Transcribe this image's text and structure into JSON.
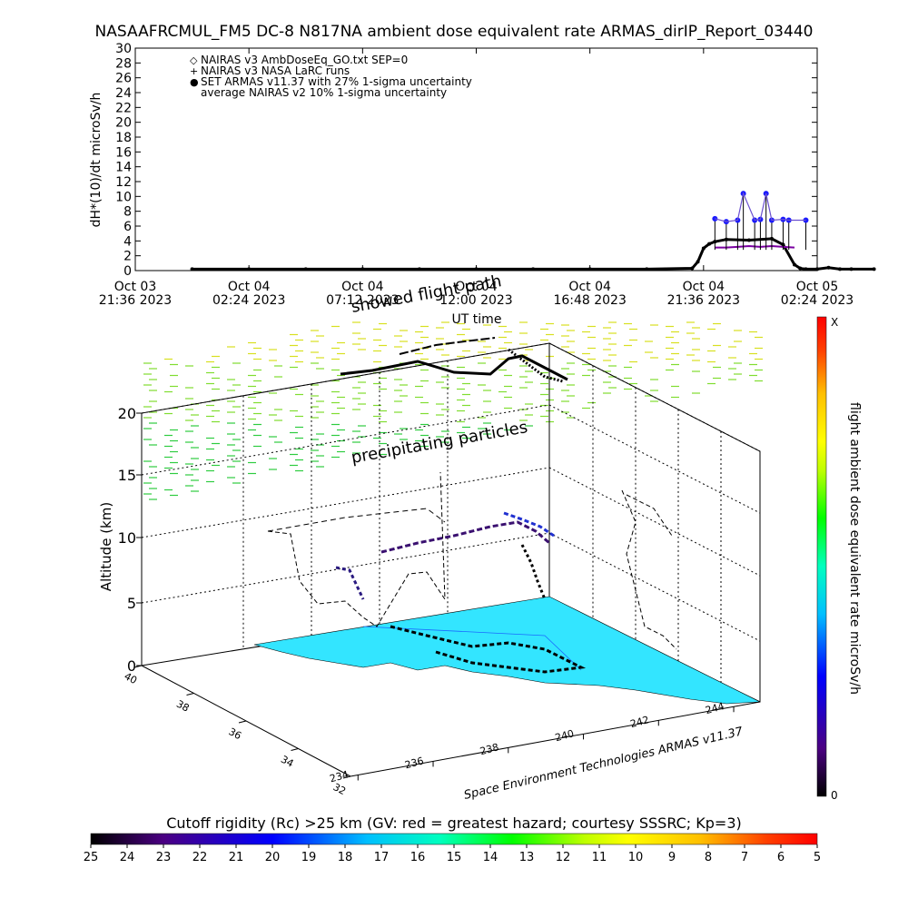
{
  "title": "NASAAFRCMUL_FM5 DC-8   N817NA ambient dose equivalent rate ARMAS_dirIP_Report_03440",
  "chart_data": [
    {
      "type": "line",
      "title": "NASAAFRCMUL_FM5 DC-8   N817NA ambient dose equivalent rate ARMAS_dirIP_Report_03440",
      "ylabel": "dH*(10)/dt microSv/h",
      "xlabel": "UT time",
      "ylim": [
        0,
        30
      ],
      "yticks": [
        "0",
        "2",
        "4",
        "6",
        "8",
        "10",
        "12",
        "14",
        "16",
        "18",
        "20",
        "22",
        "24",
        "26",
        "28",
        "30"
      ],
      "xticks": [
        {
          "t": 0,
          "line1": "Oct 03",
          "line2": "21:36 2023"
        },
        {
          "t": 1,
          "line1": "Oct 04",
          "line2": "02:24 2023"
        },
        {
          "t": 2,
          "line1": "Oct 04",
          "line2": "07:12 2023"
        },
        {
          "t": 3,
          "line1": "Oct 04",
          "line2": "12:00 2023"
        },
        {
          "t": 4,
          "line1": "Oct 04",
          "line2": "16:48 2023"
        },
        {
          "t": 5,
          "line1": "Oct 04",
          "line2": "21:36 2023"
        },
        {
          "t": 6,
          "line1": "Oct 05",
          "line2": "02:24 2023"
        }
      ],
      "legend": [
        {
          "symbol": "◇",
          "label": "NAIRAS v3 AmbDoseEq_GO.txt SEP=0"
        },
        {
          "symbol": "+",
          "label": "NAIRAS v3 NASA LaRC runs"
        },
        {
          "symbol": "●",
          "label": "SET ARMAS v11.37 with 27% 1-sigma uncertainty"
        },
        {
          "symbol": "",
          "label": "average NAIRAS v2 10% 1-sigma uncertainty"
        }
      ],
      "legend_position": "top-left",
      "series": [
        {
          "color": "#000000",
          "x": [
            0.5,
            1.0,
            1.5,
            2.0,
            2.5,
            3.0,
            3.5,
            4.0,
            4.5,
            4.9,
            4.95,
            5.0,
            5.05,
            5.1,
            5.2,
            5.4,
            5.6,
            5.7,
            5.8,
            5.85,
            5.9,
            6.0,
            6.1,
            6.2,
            6.3,
            6.5
          ],
          "y": [
            0.2,
            0.2,
            0.2,
            0.2,
            0.2,
            0.2,
            0.2,
            0.2,
            0.2,
            0.3,
            1.2,
            3.0,
            3.6,
            3.9,
            4.2,
            4.1,
            4.3,
            3.5,
            0.8,
            0.3,
            0.2,
            0.2,
            0.4,
            0.2,
            0.2,
            0.2
          ]
        },
        {
          "color": "#1a1aff",
          "x": [
            5.1,
            5.2,
            5.3,
            5.35,
            5.45,
            5.5,
            5.55,
            5.6,
            5.7,
            5.75,
            5.9
          ],
          "y": [
            7.0,
            6.6,
            6.8,
            10.4,
            6.8,
            6.9,
            10.4,
            6.8,
            6.9,
            6.8,
            6.8
          ]
        },
        {
          "color": "#7a00a0",
          "x": [
            5.1,
            5.2,
            5.3,
            5.4,
            5.5,
            5.6,
            5.7,
            5.8
          ],
          "y": [
            3.1,
            3.1,
            3.2,
            3.3,
            3.2,
            3.3,
            3.2,
            3.1
          ]
        }
      ]
    },
    {
      "type": "scatter",
      "title": "",
      "zlabel": "Altitude (km)",
      "zticks": [
        "0",
        "5",
        "10",
        "15",
        "20"
      ],
      "lat_ticks": [
        "32",
        "34",
        "36",
        "38",
        "40"
      ],
      "lon_ticks": [
        "234",
        "236",
        "238",
        "240",
        "242",
        "244"
      ],
      "annotations": [
        "showed flight path",
        "precipitating particles"
      ],
      "credit": "Space Environment Technologies ARMAS v11.37",
      "surface_color": "#33e5ff"
    },
    {
      "type": "heatmap",
      "title": "Cutoff rigidity (Rc) >25 km (GV: red = greatest hazard; courtesy SSSRC; Kp=3)",
      "ticks": [
        "25",
        "24",
        "23",
        "22",
        "21",
        "20",
        "19",
        "18",
        "17",
        "16",
        "15",
        "14",
        "13",
        "12",
        "11",
        "10",
        "9",
        "8",
        "7",
        "6",
        "5"
      ],
      "colors": [
        "#000000",
        "#4b0082",
        "#0000ff",
        "#00bfff",
        "#00ffbf",
        "#00ff00",
        "#bfff00",
        "#ffff00",
        "#ffbf00",
        "#ff4000",
        "#ff0000"
      ]
    },
    {
      "type": "heatmap",
      "title": "flight ambient dose equivalent rate microSv/h",
      "top_label": "X",
      "bottom_label": "0",
      "colors": [
        "#000000",
        "#4b0082",
        "#0000ff",
        "#00bfff",
        "#00ffbf",
        "#00ff00",
        "#bfff00",
        "#ffff00",
        "#ffbf00",
        "#ff4000",
        "#ff0000"
      ]
    }
  ]
}
